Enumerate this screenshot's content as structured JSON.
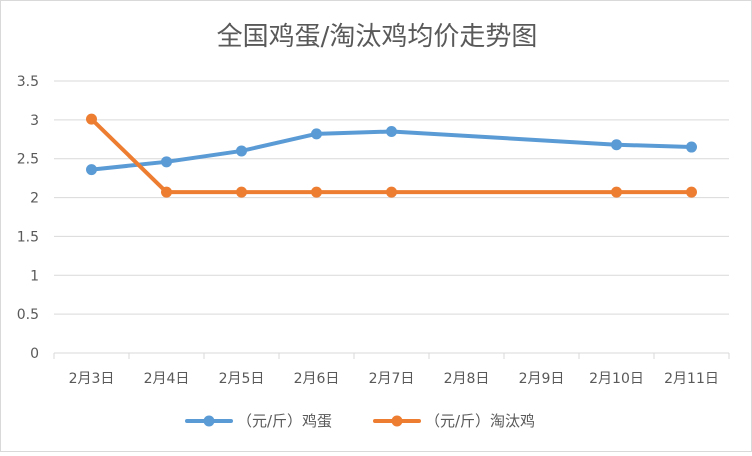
{
  "chart_data": {
    "type": "line",
    "title": "全国鸡蛋/淘汰鸡均价走势图",
    "xlabel": "",
    "ylabel": "",
    "categories": [
      "2月3日",
      "2月4日",
      "2月5日",
      "2月6日",
      "2月7日",
      "2月8日",
      "2月9日",
      "2月10日",
      "2月11日"
    ],
    "ylim": [
      0,
      3.5
    ],
    "yticks": [
      "0",
      "0.5",
      "1",
      "1.5",
      "2",
      "2.5",
      "3",
      "3.5"
    ],
    "grid": true,
    "legend_position": "bottom",
    "series": [
      {
        "name": "（元/斤）鸡蛋",
        "color": "#5b9bd5",
        "values": [
          2.36,
          2.46,
          2.6,
          2.82,
          2.85,
          null,
          null,
          2.68,
          2.65
        ]
      },
      {
        "name": "（元/斤）淘汰鸡",
        "color": "#ed7d31",
        "values": [
          3.01,
          2.07,
          2.07,
          2.07,
          2.07,
          null,
          null,
          2.07,
          2.07
        ]
      }
    ]
  }
}
